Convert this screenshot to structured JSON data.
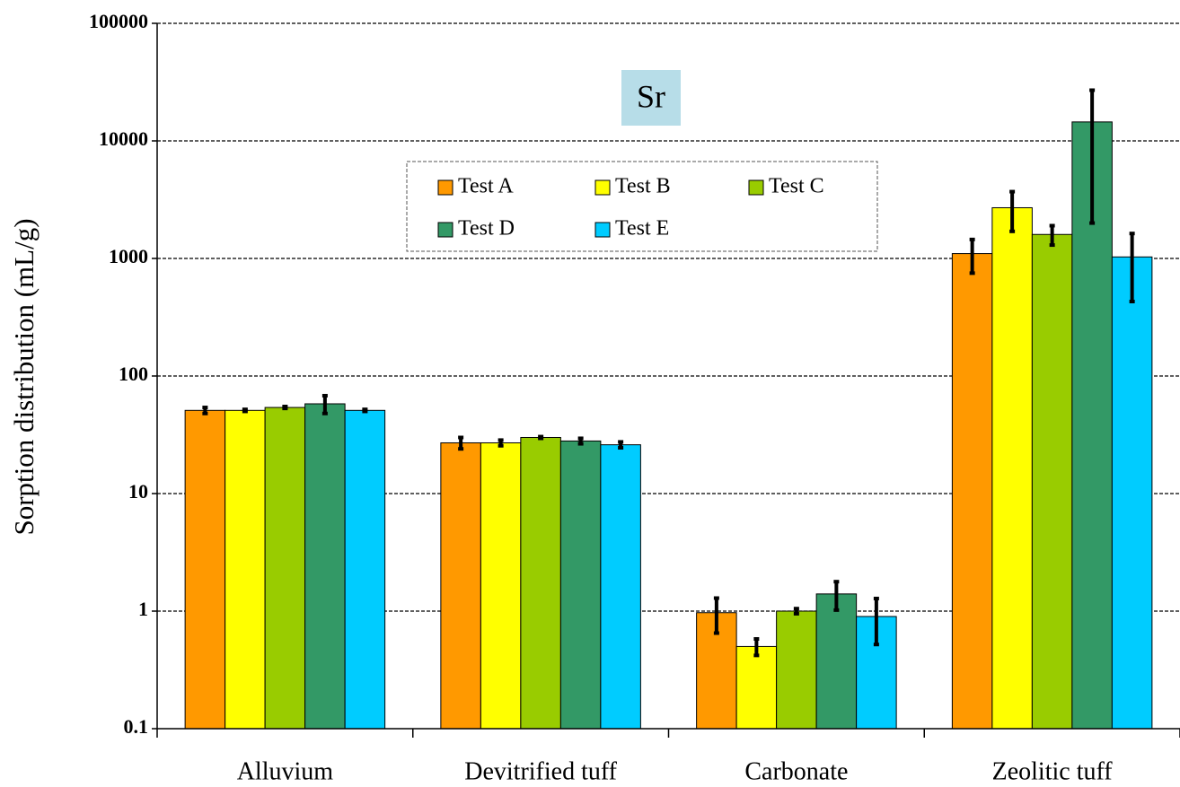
{
  "chart_data": {
    "type": "bar",
    "title": "Sr",
    "y_label": "Sorption distribution (mL/g)",
    "categories": [
      "Alluvium",
      "Devitrified tuff",
      "Carbonate",
      "Zeolitic tuff"
    ],
    "series": [
      {
        "name": "Test A",
        "color": "#ff9900",
        "values": [
          51,
          27,
          0.97,
          1100
        ],
        "errors": [
          3,
          3,
          0.32,
          350
        ]
      },
      {
        "name": "Test B",
        "color": "#ffff00",
        "values": [
          51,
          27,
          0.5,
          2700
        ],
        "errors": [
          1,
          1.5,
          0.08,
          1000
        ]
      },
      {
        "name": "Test C",
        "color": "#99cc00",
        "values": [
          54,
          30,
          1.0,
          1600
        ],
        "errors": [
          1,
          0.5,
          0.05,
          300
        ]
      },
      {
        "name": "Test D",
        "color": "#339966",
        "values": [
          58,
          28,
          1.4,
          14500
        ],
        "errors": [
          10,
          1.5,
          0.38,
          12500
        ]
      },
      {
        "name": "Test E",
        "color": "#00ccff",
        "values": [
          51,
          26,
          0.9,
          1030
        ],
        "errors": [
          1,
          1.5,
          0.38,
          600
        ]
      }
    ],
    "log_scale": true,
    "ylim": [
      0.1,
      100000
    ],
    "yticks": [
      0.1,
      1,
      10,
      100,
      1000,
      10000,
      100000
    ],
    "grid": true
  }
}
